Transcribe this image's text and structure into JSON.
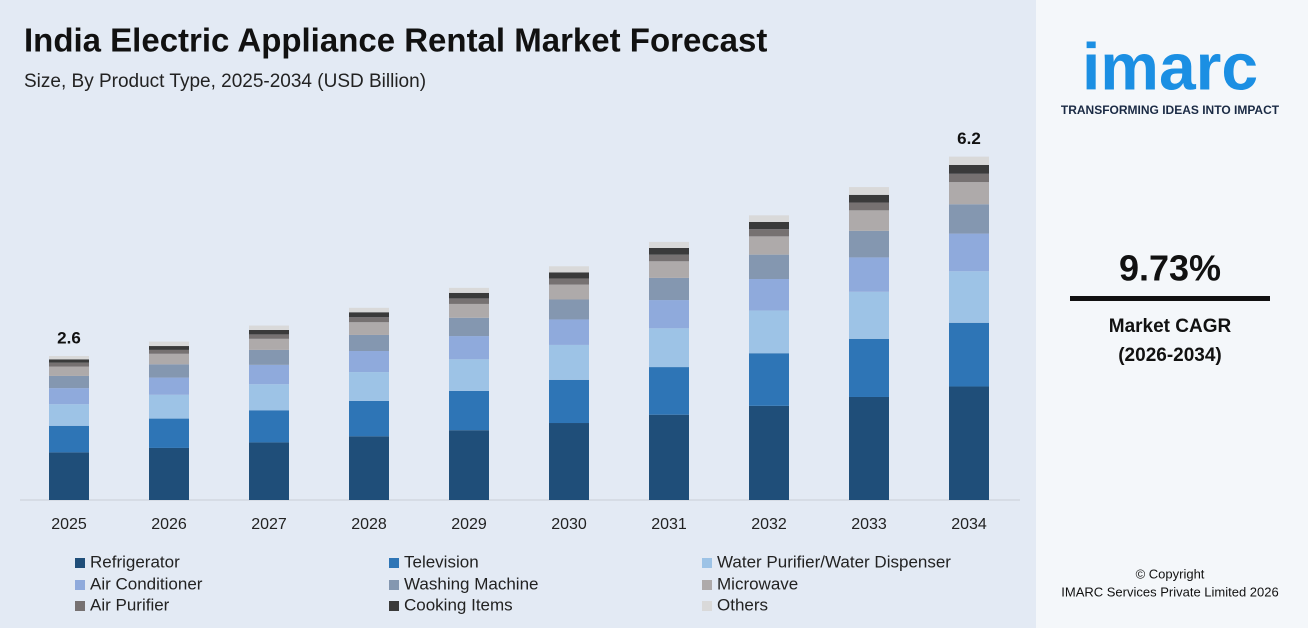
{
  "chart_data": {
    "type": "stacked_bar",
    "title": "India Electric Appliance Rental Market Forecast",
    "subtitle": "Size, By Product Type, 2025-2034 (USD Billion)",
    "categories": [
      "2025",
      "2026",
      "2027",
      "2028",
      "2029",
      "2030",
      "2031",
      "2032",
      "2033",
      "2034"
    ],
    "series": [
      {
        "name": "Refrigerator",
        "color": "#1f4e79",
        "values": [
          0.86,
          0.94,
          1.04,
          1.15,
          1.26,
          1.39,
          1.54,
          1.7,
          1.86,
          2.05
        ]
      },
      {
        "name": "Television",
        "color": "#2e75b6",
        "values": [
          0.48,
          0.53,
          0.58,
          0.64,
          0.71,
          0.78,
          0.86,
          0.95,
          1.05,
          1.15
        ]
      },
      {
        "name": "Water Purifier/Water Dispenser",
        "color": "#9dc3e6",
        "values": [
          0.39,
          0.43,
          0.47,
          0.52,
          0.57,
          0.63,
          0.7,
          0.77,
          0.85,
          0.93
        ]
      },
      {
        "name": "Air Conditioner",
        "color": "#8faadc",
        "values": [
          0.29,
          0.31,
          0.35,
          0.38,
          0.42,
          0.46,
          0.51,
          0.57,
          0.62,
          0.68
        ]
      },
      {
        "name": "Washing Machine",
        "color": "#8497b0",
        "values": [
          0.22,
          0.24,
          0.27,
          0.29,
          0.33,
          0.36,
          0.4,
          0.44,
          0.48,
          0.53
        ]
      },
      {
        "name": "Microwave",
        "color": "#aeaaaa",
        "values": [
          0.17,
          0.19,
          0.2,
          0.23,
          0.25,
          0.27,
          0.3,
          0.33,
          0.37,
          0.4
        ]
      },
      {
        "name": "Air Purifier",
        "color": "#767171",
        "values": [
          0.07,
          0.07,
          0.08,
          0.09,
          0.1,
          0.11,
          0.12,
          0.13,
          0.14,
          0.15
        ]
      },
      {
        "name": "Cooking Items",
        "color": "#3a3a3a",
        "values": [
          0.06,
          0.07,
          0.08,
          0.09,
          0.1,
          0.11,
          0.12,
          0.13,
          0.14,
          0.16
        ]
      },
      {
        "name": "Others",
        "color": "#d9d9d9",
        "values": [
          0.06,
          0.08,
          0.08,
          0.08,
          0.09,
          0.11,
          0.11,
          0.12,
          0.14,
          0.15
        ]
      }
    ],
    "total_labels": [
      {
        "category": "2025",
        "value": 2.6
      },
      {
        "category": "2034",
        "value": 6.2
      }
    ],
    "ylim": [
      0,
      6.5
    ]
  },
  "sidebar": {
    "logo": "imarc",
    "tagline": "TRANSFORMING IDEAS INTO IMPACT",
    "cagr": "9.73%",
    "cagr_label": "Market CAGR",
    "cagr_period": "(2026-2034)",
    "copyright": "© Copyright",
    "company": "IMARC Services Private Limited 2026"
  }
}
